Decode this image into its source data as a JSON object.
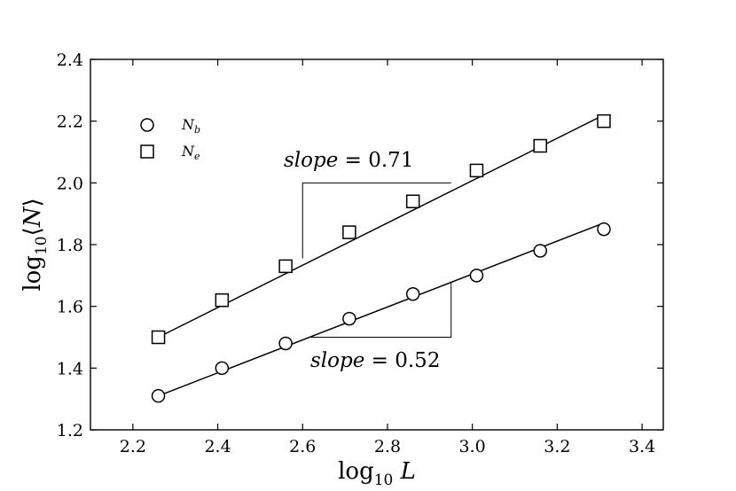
{
  "chart_data": {
    "type": "scatter",
    "xlabel": "log10 L",
    "ylabel": "log10⟨N⟩",
    "xlim": [
      2.1,
      3.45
    ],
    "ylim": [
      1.2,
      2.4
    ],
    "xticks": [
      "2.2",
      "2.4",
      "2.6",
      "2.8",
      "3.0",
      "3.2",
      "3.4"
    ],
    "yticks": [
      "1.2",
      "1.4",
      "1.6",
      "1.8",
      "2.0",
      "2.2",
      "2.4"
    ],
    "legend_position": "top-left",
    "series": [
      {
        "name": "Nb",
        "marker": "circle",
        "x": [
          2.26,
          2.41,
          2.56,
          2.71,
          2.86,
          3.01,
          3.16,
          3.31
        ],
        "y": [
          1.31,
          1.4,
          1.48,
          1.56,
          1.64,
          1.7,
          1.78,
          1.85
        ],
        "fit_line": {
          "x": [
            2.26,
            3.31
          ],
          "y": [
            1.31,
            1.87
          ]
        }
      },
      {
        "name": "Ne",
        "marker": "square",
        "x": [
          2.26,
          2.41,
          2.56,
          2.71,
          2.86,
          3.01,
          3.16,
          3.31
        ],
        "y": [
          1.5,
          1.62,
          1.73,
          1.84,
          1.94,
          2.04,
          2.12,
          2.2
        ],
        "fit_line": {
          "x": [
            2.26,
            3.31
          ],
          "y": [
            1.5,
            2.22
          ]
        }
      }
    ],
    "annotations": [
      {
        "word": "slope",
        "rest": " = 0.71",
        "triangle": {
          "x": [
            2.6,
            2.6,
            2.95
          ],
          "y": [
            1.755,
            2.0,
            2.0
          ]
        }
      },
      {
        "word": "slope",
        "rest": " = 0.52",
        "triangle": {
          "x": [
            2.62,
            2.95,
            2.95
          ],
          "y": [
            1.5,
            1.5,
            1.68
          ]
        }
      }
    ]
  }
}
